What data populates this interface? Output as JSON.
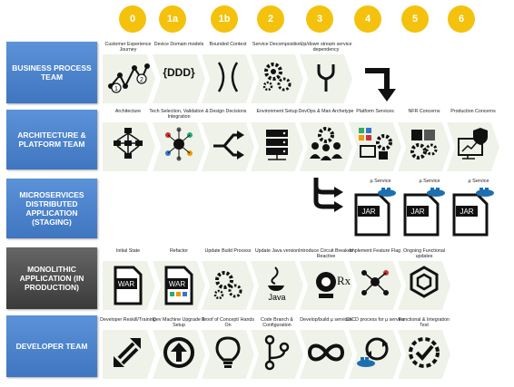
{
  "phases": [
    "0",
    "1a",
    "1b",
    "2",
    "3",
    "4",
    "5",
    "6"
  ],
  "rows": [
    {
      "label": "BUSINESS PROCESS TEAM",
      "style": "blue"
    },
    {
      "label": "ARCHITECTURE & PLATFORM TEAM",
      "style": "blue"
    },
    {
      "label": "MICROSERVICES DISTRIBUTED APPLICATION (STAGING)",
      "style": "blue"
    },
    {
      "label": "MONOLITHIC APPLICATION (IN PRODUCTION)",
      "style": "gray"
    },
    {
      "label": "DEVELOPER TEAM",
      "style": "blue"
    }
  ],
  "business": [
    {
      "title": "Customer Experience Journey",
      "icon": "journey-icon"
    },
    {
      "title": "Device Domain models",
      "icon": "ddd-icon"
    },
    {
      "title": "Bounded Context",
      "icon": "bounded-context-icon"
    },
    {
      "title": "Service Decomposition",
      "icon": "gears-icon"
    },
    {
      "title": "Up/down stream service dependency",
      "icon": "fork-icon"
    }
  ],
  "architecture": [
    {
      "title": "Architecture",
      "icon": "network-icon"
    },
    {
      "title": "Tech Selection, Validation & Integration",
      "icon": "integration-icon"
    },
    {
      "title": "Design Decisions",
      "icon": "decision-arrows-icon"
    },
    {
      "title": "Environment Setup",
      "icon": "server-icon"
    },
    {
      "title": "DevOps & Man Archetype",
      "icon": "team-gear-icon"
    },
    {
      "title": "Platform Services",
      "icon": "platform-icon"
    },
    {
      "title": "NFR Concerns",
      "icon": "nfr-gears-icon"
    },
    {
      "title": "Production Concerns",
      "icon": "security-monitor-icon"
    }
  ],
  "microservices": {
    "jar": "JAR",
    "services": [
      "µ Service",
      "µ Service",
      "µ Service"
    ]
  },
  "monolith": [
    {
      "title": "Initial State",
      "icon": "war-file-icon"
    },
    {
      "title": "Refactor",
      "icon": "war-file-icon"
    },
    {
      "title": "Update Build Process",
      "icon": "gears-icon"
    },
    {
      "title": "Update Java version",
      "icon": "java-icon"
    },
    {
      "title": "Introduce Circuit Breaker/ Reactive",
      "icon": "circuit-breaker-icon"
    },
    {
      "title": "Implement Feature Flag",
      "icon": "feature-flag-icon"
    },
    {
      "title": "Ongoing Functional updates",
      "icon": "hexagon-icon"
    }
  ],
  "war": "WAR",
  "java": "Java",
  "rx": "Rx",
  "ddd": "{DDD}",
  "journey_steps": [
    "1",
    "2"
  ],
  "developer": [
    {
      "title": "Developer Reskill/Training",
      "icon": "refresh-arrows-icon"
    },
    {
      "title": "Dev Machine Upgrade & Setup",
      "icon": "upload-icon"
    },
    {
      "title": "Proof of Concept/ Hands On",
      "icon": "lightbulb-icon"
    },
    {
      "title": "Code Branch & Configuration",
      "icon": "branch-icon"
    },
    {
      "title": "Develop/build µ services",
      "icon": "infinity-icon"
    },
    {
      "title": "CI/CD process for µ service",
      "icon": "cicd-icon"
    },
    {
      "title": "Functional & Integration Test",
      "icon": "check-badge-icon"
    }
  ],
  "colors": {
    "phase": "#f4c20d",
    "row_blue": "#4a80c8",
    "row_gray": "#4a4a4a",
    "chevron": "#eef2e8",
    "docker": "#1e6fb0"
  }
}
